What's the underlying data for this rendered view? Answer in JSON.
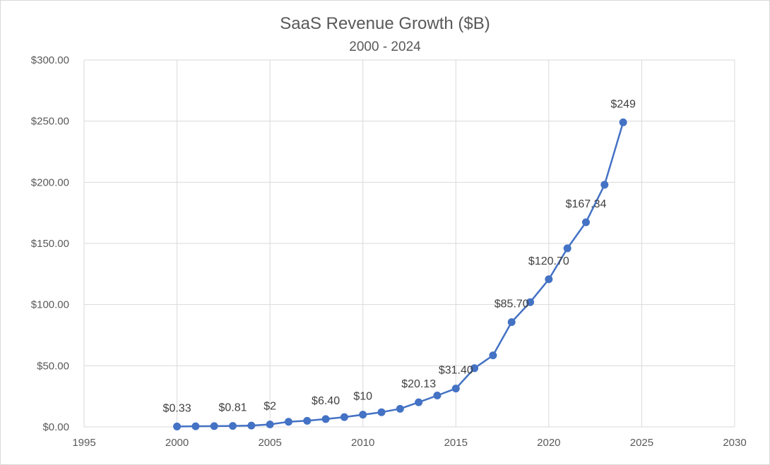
{
  "chart_data": {
    "type": "scatter",
    "title": "SaaS Revenue Growth ($B)",
    "subtitle": "2000 - 2024",
    "xlabel": "",
    "ylabel": "",
    "xlim": [
      1995,
      2030
    ],
    "ylim": [
      0,
      300
    ],
    "x_ticks": [
      1995,
      2000,
      2005,
      2010,
      2015,
      2020,
      2025,
      2030
    ],
    "x_tick_labels": [
      "1995",
      "2000",
      "2005",
      "2010",
      "2015",
      "2020",
      "2025",
      "2030"
    ],
    "y_ticks": [
      0,
      50,
      100,
      150,
      200,
      250,
      300
    ],
    "y_tick_labels": [
      "$0.00",
      "$50.00",
      "$100.00",
      "$150.00",
      "$200.00",
      "$250.00",
      "$300.00"
    ],
    "grid": true,
    "legend": "none",
    "series": [
      {
        "name": "SaaS Revenue ($B)",
        "color": "#4472c4",
        "line": "straight with markers",
        "x": [
          2000,
          2001,
          2002,
          2003,
          2004,
          2005,
          2006,
          2007,
          2008,
          2009,
          2010,
          2011,
          2012,
          2013,
          2014,
          2015,
          2016,
          2017,
          2018,
          2019,
          2020,
          2021,
          2022,
          2023,
          2024
        ],
        "y": [
          0.33,
          0.5,
          0.65,
          0.81,
          1.1,
          2,
          4.2,
          5,
          6.4,
          8,
          10,
          12,
          14.8,
          20.13,
          25.7,
          31.4,
          48,
          58.5,
          85.7,
          102,
          120.7,
          146,
          167.34,
          198,
          249
        ]
      }
    ],
    "data_labels": [
      {
        "x": 2000,
        "y": 0.33,
        "text": "$0.33"
      },
      {
        "x": 2003,
        "y": 0.81,
        "text": "$0.81"
      },
      {
        "x": 2005,
        "y": 2,
        "text": "$2"
      },
      {
        "x": 2008,
        "y": 6.4,
        "text": "$6.40"
      },
      {
        "x": 2010,
        "y": 10,
        "text": "$10"
      },
      {
        "x": 2013,
        "y": 20.13,
        "text": "$20.13"
      },
      {
        "x": 2015,
        "y": 31.4,
        "text": "$31.40"
      },
      {
        "x": 2018,
        "y": 85.7,
        "text": "$85.70"
      },
      {
        "x": 2020,
        "y": 120.7,
        "text": "$120.70"
      },
      {
        "x": 2022,
        "y": 167.34,
        "text": "$167.34"
      },
      {
        "x": 2024,
        "y": 249,
        "text": "$249"
      }
    ],
    "colors": {
      "series": "#4472c4",
      "grid": "#d9d9d9",
      "axis_text": "#595959",
      "title_text": "#595959",
      "label_text": "#404040"
    }
  }
}
